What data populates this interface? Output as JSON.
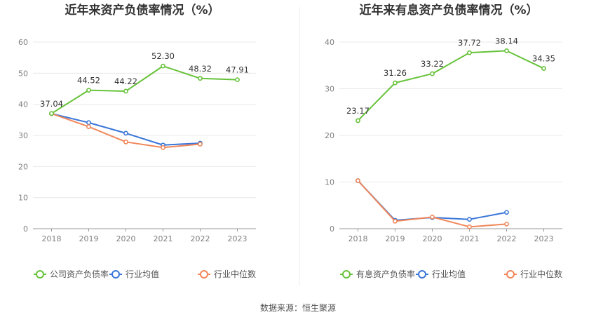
{
  "source_text": "数据来源：恒生聚源",
  "colors": {
    "main": "#67c23a",
    "avg": "#3a76d8",
    "median": "#f0875a",
    "grid": "#e8e8e8",
    "axis": "#999999"
  },
  "chart_data": [
    {
      "type": "line",
      "title": "近年来资产负债率情况（%）",
      "categories": [
        "2018",
        "2019",
        "2020",
        "2021",
        "2022",
        "2023"
      ],
      "ylim": [
        0,
        60
      ],
      "yticks": [
        0,
        10,
        20,
        30,
        40,
        50,
        60
      ],
      "grid": true,
      "legend_position": "bottom",
      "series": [
        {
          "name": "公司资产负债率",
          "color": "#67c23a",
          "labels": true,
          "values": [
            37.04,
            44.52,
            44.22,
            52.3,
            48.32,
            47.91
          ]
        },
        {
          "name": "行业均值",
          "color": "#3a76d8",
          "labels": false,
          "values": [
            37.0,
            34.1,
            30.7,
            26.9,
            27.5,
            null
          ]
        },
        {
          "name": "行业中位数",
          "color": "#f0875a",
          "labels": false,
          "values": [
            37.0,
            32.8,
            27.9,
            26.1,
            27.2,
            null
          ]
        }
      ],
      "data_labels": [
        "37.04",
        "44.52",
        "44.22",
        "52.30",
        "48.32",
        "47.91"
      ]
    },
    {
      "type": "line",
      "title": "近年来有息资产负债率情况（%）",
      "categories": [
        "2018",
        "2019",
        "2020",
        "2021",
        "2022",
        "2023"
      ],
      "ylim": [
        0,
        40
      ],
      "yticks": [
        0,
        10,
        20,
        30,
        40
      ],
      "grid": true,
      "legend_position": "bottom",
      "series": [
        {
          "name": "有息资产负债率",
          "color": "#67c23a",
          "labels": true,
          "values": [
            23.17,
            31.26,
            33.22,
            37.72,
            38.14,
            34.35
          ]
        },
        {
          "name": "行业均值",
          "color": "#3a76d8",
          "labels": false,
          "values": [
            10.3,
            1.8,
            2.4,
            2.0,
            3.5,
            null
          ]
        },
        {
          "name": "行业中位数",
          "color": "#f0875a",
          "labels": false,
          "values": [
            10.3,
            1.6,
            2.5,
            0.4,
            1.0,
            null
          ]
        }
      ],
      "data_labels": [
        "23.17",
        "31.26",
        "33.22",
        "37.72",
        "38.14",
        "34.35"
      ]
    }
  ]
}
